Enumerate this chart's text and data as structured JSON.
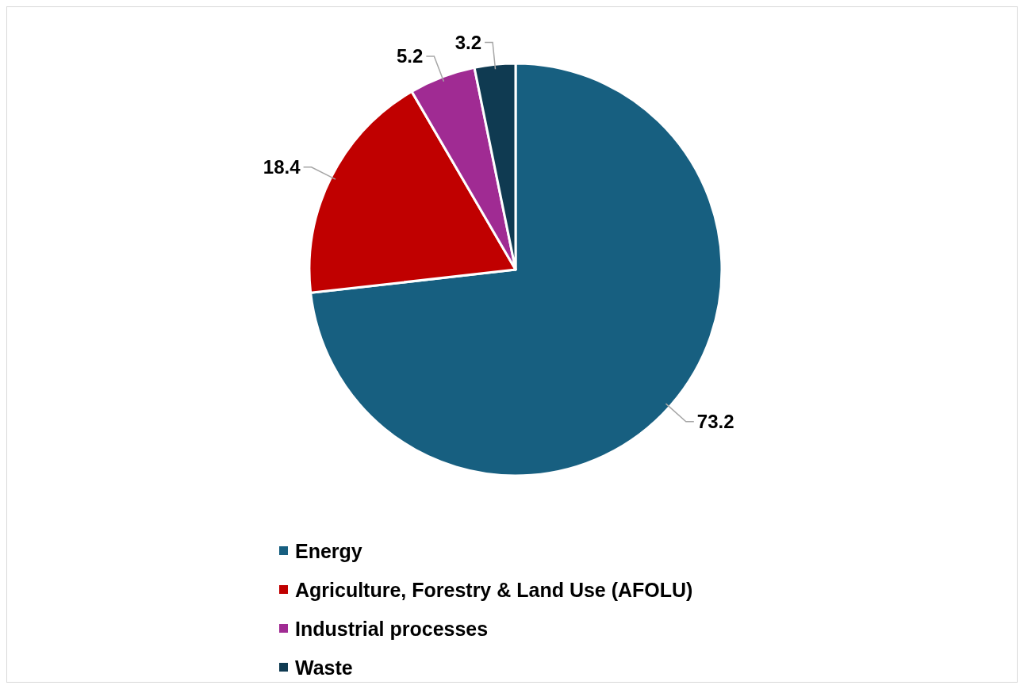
{
  "chart_data": {
    "type": "pie",
    "categories": [
      "Energy",
      "Agriculture, Forestry & Land Use (AFOLU)",
      "Industrial processes",
      "Waste"
    ],
    "values": [
      73.2,
      18.4,
      5.2,
      3.2
    ],
    "colors": [
      "#175f80",
      "#c00000",
      "#a02b93",
      "#0f3a51"
    ],
    "data_labels": true,
    "legend": "bottom"
  }
}
